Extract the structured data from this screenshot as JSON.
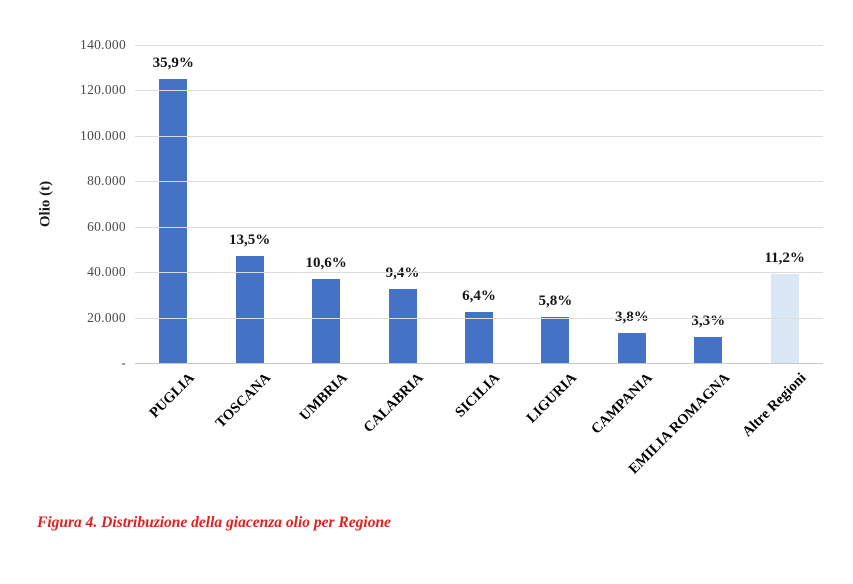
{
  "figure": {
    "caption": "Figura 4. Distribuzione della giacenza olio per Regione"
  },
  "chart_data": {
    "type": "bar",
    "title": "",
    "xlabel": "",
    "ylabel": "Olio (t)",
    "ylim": [
      0,
      140000
    ],
    "ytick_interval": 20000,
    "ytick_labels": [
      "140.000",
      "120.000",
      "100.000",
      "80.000",
      "60.000",
      "40.000",
      "20.000",
      "-"
    ],
    "grid": true,
    "legend": "none",
    "categories": [
      "PUGLIA",
      "TOSCANA",
      "UMBRIA",
      "CALABRIA",
      "SICILIA",
      "LIGURIA",
      "CAMPANIA",
      "EMILIA ROMAGNA",
      "Altre Regioni"
    ],
    "values": [
      124900,
      47000,
      36900,
      32700,
      22300,
      20200,
      13200,
      11500,
      39000
    ],
    "bar_labels": [
      "35,9%",
      "13,5%",
      "10,6%",
      "9,4%",
      "6,4%",
      "5,8%",
      "3,8%",
      "3,3%",
      "11,2%"
    ],
    "bar_colors": [
      "#4472C4",
      "#4472C4",
      "#4472C4",
      "#4472C4",
      "#4472C4",
      "#4472C4",
      "#4472C4",
      "#4472C4",
      "#DAE8F6"
    ],
    "colors": {
      "primary_bar": "#4472C4",
      "highlight_bar": "#DAE8F6",
      "gridline": "#DCDCDC",
      "axis_line": "#C9C9C9",
      "tick_text": "#4a4a4a",
      "label_text": "#151515",
      "caption_text": "#E02020"
    }
  }
}
